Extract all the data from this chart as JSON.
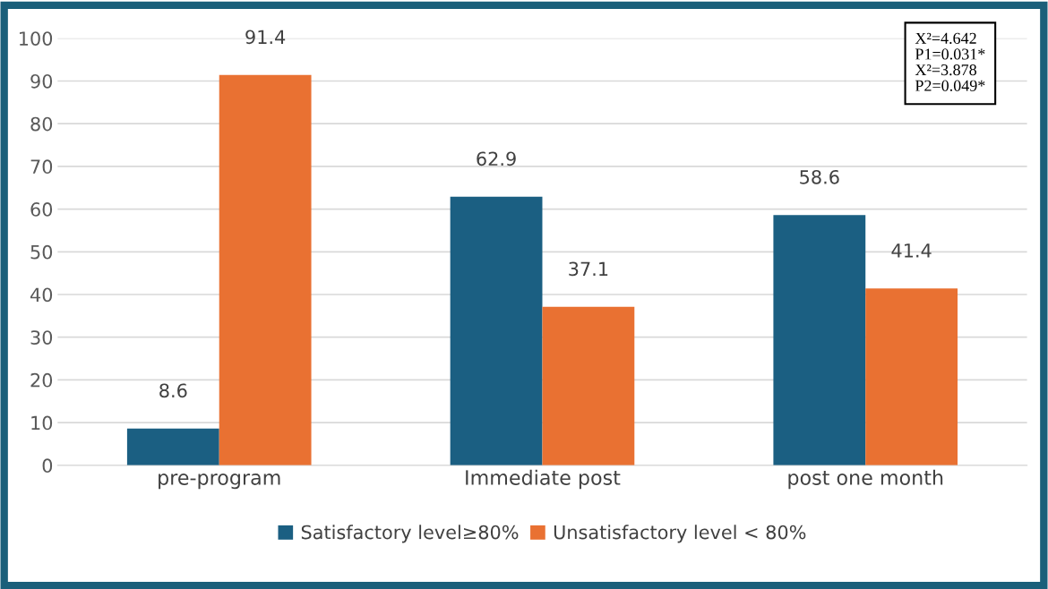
{
  "chart_data": {
    "type": "bar",
    "categories": [
      "pre-program",
      "Immediate post",
      "post one month"
    ],
    "series": [
      {
        "name": "Satisfactory level≥80%",
        "color": "#1b5f82",
        "values": [
          8.6,
          62.9,
          58.6
        ]
      },
      {
        "name": "Unsatisfactory level < 80%",
        "color": "#e97132",
        "values": [
          91.4,
          37.1,
          41.4
        ]
      }
    ],
    "ylim": [
      0,
      100
    ],
    "yticks": [
      0,
      10,
      20,
      30,
      40,
      50,
      60,
      70,
      80,
      90,
      100
    ],
    "grid": "y",
    "legend": "bottom",
    "data_labels": true,
    "annotations": [
      "X²=4.642",
      "P1=0.031*",
      "X²=3.878",
      "P2=0.049*"
    ]
  }
}
